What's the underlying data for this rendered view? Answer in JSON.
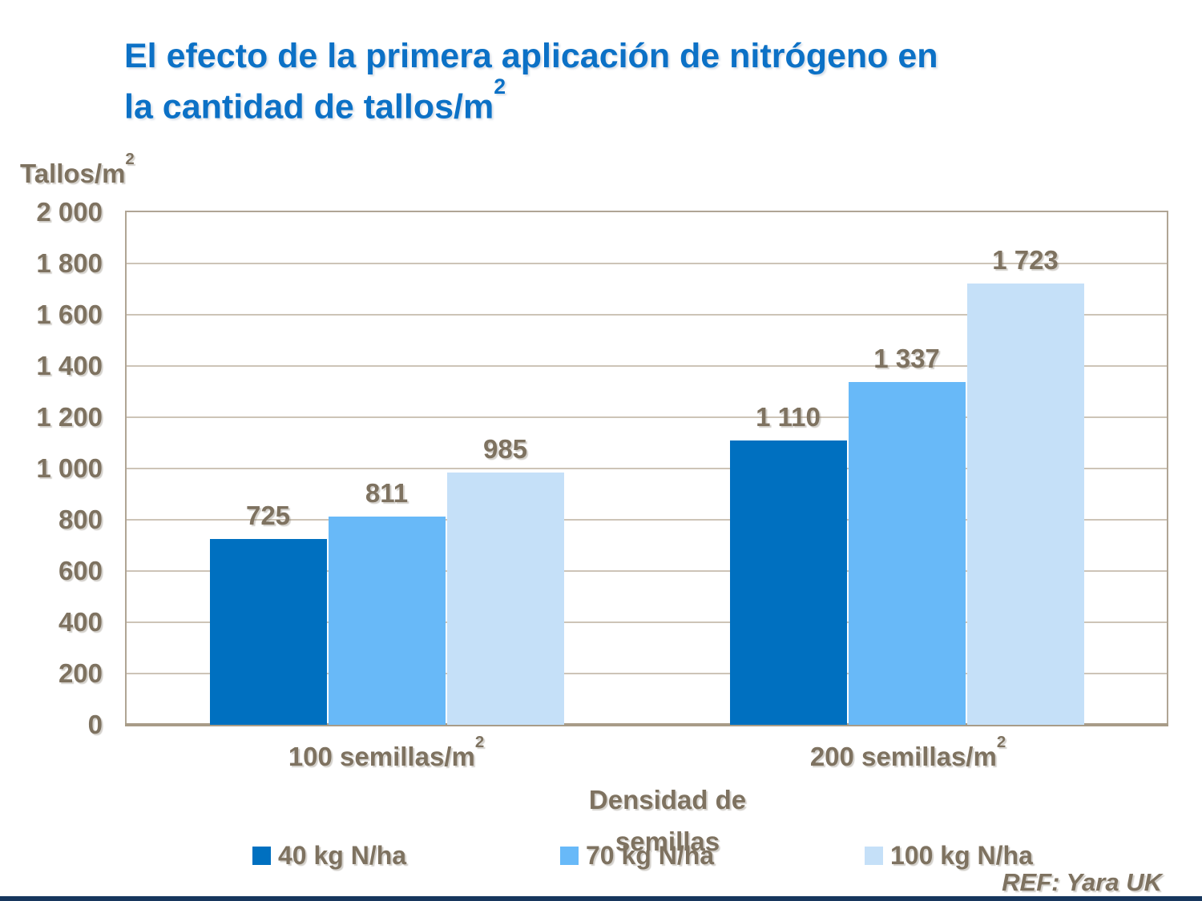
{
  "slide": {
    "title_line1": "El efecto de la primera aplicación de nitrógeno en",
    "title_line2_base": "la cantidad de tallos/m",
    "title_line2_sup": "2",
    "ref_text": "REF: Yara UK",
    "title_color": "#0C71C6",
    "text_color": "#7E7260",
    "footer_bar_color": "#17365D"
  },
  "y_axis": {
    "title_base": "Tallos/m",
    "title_sup": "2",
    "ticks": [
      "2 000",
      "1 800",
      "1 600",
      "1 400",
      "1 200",
      "1 000",
      "800",
      "600",
      "400",
      "200",
      "0"
    ]
  },
  "x_axis": {
    "title_line1": "Densidad de",
    "title_line2": "semillas",
    "categories": [
      {
        "base": "100 semillas/m",
        "sup": "2"
      },
      {
        "base": "200 semillas/m",
        "sup": "2"
      }
    ]
  },
  "legend": {
    "entries": [
      {
        "label": "40 kg N/ha",
        "color": "#0070C0"
      },
      {
        "label": "70 kg N/ha",
        "color": "#68B9F8"
      },
      {
        "label": "100 kg N/ha",
        "color": "#C5E0F8"
      }
    ]
  },
  "chart_data": {
    "type": "bar",
    "title": "El efecto de la primera aplicación de nitrógeno en la cantidad de tallos/m²",
    "categories": [
      "100 semillas/m²",
      "200 semillas/m²"
    ],
    "series": [
      {
        "name": "40 kg N/ha",
        "color": "#0070C0",
        "values": [
          725,
          1110
        ],
        "labels": [
          "725",
          "1 110"
        ]
      },
      {
        "name": "70 kg N/ha",
        "color": "#68B9F8",
        "values": [
          811,
          1337
        ],
        "labels": [
          "811",
          "1 337"
        ]
      },
      {
        "name": "100 kg N/ha",
        "color": "#C5E0F8",
        "values": [
          985,
          1723
        ],
        "labels": [
          "985",
          "1 723"
        ]
      }
    ],
    "xlabel": "Densidad de semillas",
    "ylabel": "Tallos/m²",
    "ylim": [
      0,
      2000
    ],
    "ytick_step": 200,
    "grid": true,
    "legend_position": "bottom",
    "footnote": "REF: Yara UK"
  }
}
